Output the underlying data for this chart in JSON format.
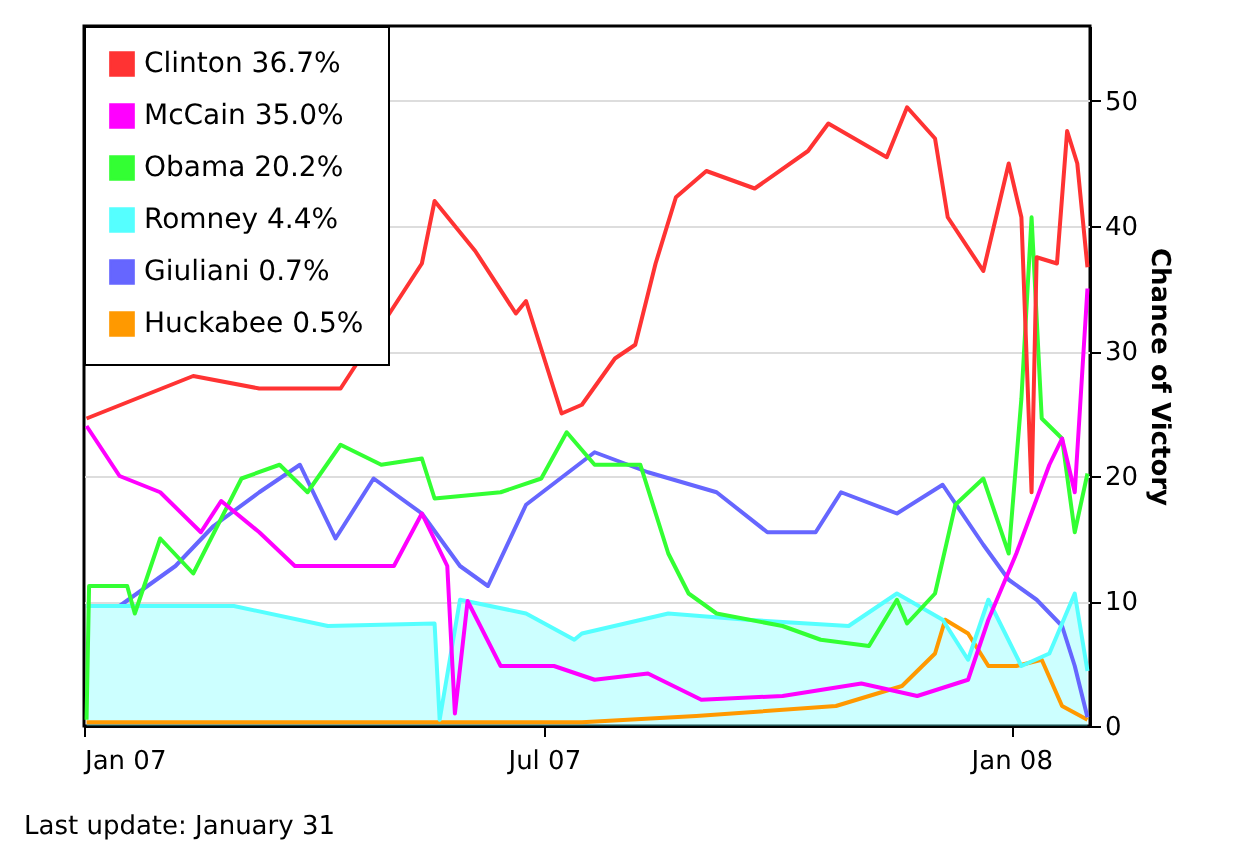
{
  "chart_data": {
    "type": "line",
    "ylabel": "Chance of Victory",
    "annotations": [
      "Last update: January 31"
    ],
    "xlim": [
      "2007-01-01",
      "2008-02-01"
    ],
    "xticks": [
      {
        "value": "2007-01-01",
        "label": "Jan 07"
      },
      {
        "value": "2007-07-01",
        "label": "Jul 07"
      },
      {
        "value": "2008-01-01",
        "label": "Jan 08"
      }
    ],
    "ylim": [
      0,
      56
    ],
    "yticks": [
      0,
      10,
      20,
      30,
      40,
      50
    ],
    "grid": "y",
    "legend": "top left",
    "series": [
      {
        "name": "Clinton 36.7%",
        "color": "#ff3333",
        "x": [
          "2007-01-02",
          "2007-02-13",
          "2007-03-11",
          "2007-04-12",
          "2007-05-14",
          "2007-05-19",
          "2007-06-04",
          "2007-06-20",
          "2007-06-24",
          "2007-07-08",
          "2007-07-16",
          "2007-07-29",
          "2007-08-06",
          "2007-08-14",
          "2007-08-22",
          "2007-09-03",
          "2007-09-22",
          "2007-10-13",
          "2007-10-21",
          "2007-11-13",
          "2007-11-21",
          "2007-12-02",
          "2007-12-07",
          "2007-12-21",
          "2007-12-31",
          "2008-01-05",
          "2008-01-09",
          "2008-01-11",
          "2008-01-19",
          "2008-01-23",
          "2008-01-27",
          "2008-01-31"
        ],
        "values": [
          24.6,
          28,
          27,
          27,
          37,
          42,
          38,
          33,
          34,
          25,
          25.7,
          29.4,
          30.5,
          37,
          42.3,
          44.4,
          43,
          46,
          48.2,
          45.5,
          49.5,
          47,
          40.7,
          36.4,
          45,
          40.7,
          18.7,
          37.5,
          37,
          47.6,
          45,
          36.7
        ]
      },
      {
        "name": "McCain 35.0%",
        "color": "#ff00ff",
        "x": [
          "2007-01-02",
          "2007-01-15",
          "2007-01-31",
          "2007-02-16",
          "2007-02-24",
          "2007-03-11",
          "2007-03-25",
          "2007-05-03",
          "2007-05-14",
          "2007-05-24",
          "2007-05-27",
          "2007-06-01",
          "2007-06-14",
          "2007-07-05",
          "2007-07-21",
          "2007-08-11",
          "2007-09-01",
          "2007-10-03",
          "2007-11-03",
          "2007-11-25",
          "2007-12-15",
          "2007-12-23",
          "2008-01-03",
          "2008-01-16",
          "2008-01-21",
          "2008-01-26",
          "2008-01-31"
        ],
        "values": [
          24,
          20,
          18.7,
          15.5,
          18,
          15.5,
          12.8,
          12.8,
          17,
          12.8,
          1,
          10,
          4.8,
          4.8,
          3.7,
          4.2,
          2.1,
          2.4,
          3.4,
          2.4,
          3.7,
          8.5,
          13.8,
          20.9,
          23,
          18.7,
          35
        ]
      },
      {
        "name": "Obama 20.2%",
        "color": "#33ff33",
        "x": [
          "2007-01-02",
          "2007-01-03",
          "2007-01-18",
          "2007-01-21",
          "2007-01-31",
          "2007-02-13",
          "2007-03-04",
          "2007-03-19",
          "2007-03-30",
          "2007-04-12",
          "2007-04-28",
          "2007-05-14",
          "2007-05-19",
          "2007-06-14",
          "2007-06-30",
          "2007-07-10",
          "2007-07-21",
          "2007-08-08",
          "2007-08-19",
          "2007-08-27",
          "2007-09-07",
          "2007-10-03",
          "2007-10-18",
          "2007-11-06",
          "2007-11-17",
          "2007-11-21",
          "2007-12-02",
          "2007-12-10",
          "2007-12-21",
          "2007-12-31",
          "2008-01-05",
          "2008-01-09",
          "2008-01-13",
          "2008-01-21",
          "2008-01-26",
          "2008-01-31"
        ],
        "values": [
          0.5,
          11.2,
          11.2,
          9,
          15,
          12.2,
          19.8,
          20.9,
          18.7,
          22.5,
          20.9,
          21.4,
          18.2,
          18.7,
          19.8,
          23.5,
          20.9,
          20.9,
          13.8,
          10.6,
          9,
          8,
          6.9,
          6.4,
          10.1,
          8.2,
          10.6,
          17.7,
          19.8,
          13.8,
          26.2,
          40.7,
          24.6,
          23,
          15.5,
          20.2
        ]
      },
      {
        "name": "Romney 4.4%",
        "color": "#55ffff",
        "type": "area",
        "x": [
          "2007-01-02",
          "2007-03-01",
          "2007-04-07",
          "2007-05-19",
          "2007-05-21",
          "2007-05-29",
          "2007-06-24",
          "2007-07-13",
          "2007-07-16",
          "2007-08-19",
          "2007-09-19",
          "2007-10-29",
          "2007-11-17",
          "2007-12-05",
          "2007-12-15",
          "2007-12-23",
          "2008-01-05",
          "2008-01-16",
          "2008-01-26",
          "2008-01-31"
        ],
        "values": [
          9.6,
          9.6,
          8,
          8.2,
          0.5,
          10.1,
          9,
          6.9,
          7.4,
          9,
          8.5,
          8,
          10.6,
          8.5,
          5.3,
          10.1,
          4.8,
          5.8,
          10.6,
          4.4
        ]
      },
      {
        "name": "Giuliani 0.7%",
        "color": "#6666ff",
        "x": [
          "2007-01-15",
          "2007-02-06",
          "2007-02-21",
          "2007-03-11",
          "2007-03-27",
          "2007-04-10",
          "2007-04-25",
          "2007-05-14",
          "2007-05-29",
          "2007-06-09",
          "2007-06-24",
          "2007-07-21",
          "2007-08-11",
          "2007-09-07",
          "2007-09-27",
          "2007-10-16",
          "2007-10-26",
          "2007-11-17",
          "2007-12-05",
          "2007-12-21",
          "2007-12-31",
          "2008-01-11",
          "2008-01-21",
          "2008-01-26",
          "2008-01-31"
        ],
        "values": [
          9.6,
          12.8,
          16,
          18.7,
          20.9,
          15,
          19.8,
          17,
          12.8,
          11.2,
          17.7,
          21.9,
          20.3,
          18.7,
          15.5,
          15.5,
          18.7,
          17,
          19.3,
          14.5,
          11.7,
          10.1,
          8,
          4.8,
          0.7
        ]
      },
      {
        "name": "Huckabee 0.5%",
        "color": "#ff9900",
        "x": [
          "2007-01-02",
          "2007-07-16",
          "2007-08-30",
          "2007-10-24",
          "2007-11-19",
          "2007-12-02",
          "2007-12-06",
          "2007-12-15",
          "2007-12-23",
          "2008-01-03",
          "2008-01-13",
          "2008-01-21",
          "2008-01-31"
        ],
        "values": [
          0.3,
          0.3,
          0.8,
          1.6,
          3.2,
          5.8,
          8.5,
          7.4,
          4.8,
          4.8,
          5.3,
          1.6,
          0.5
        ]
      }
    ]
  }
}
